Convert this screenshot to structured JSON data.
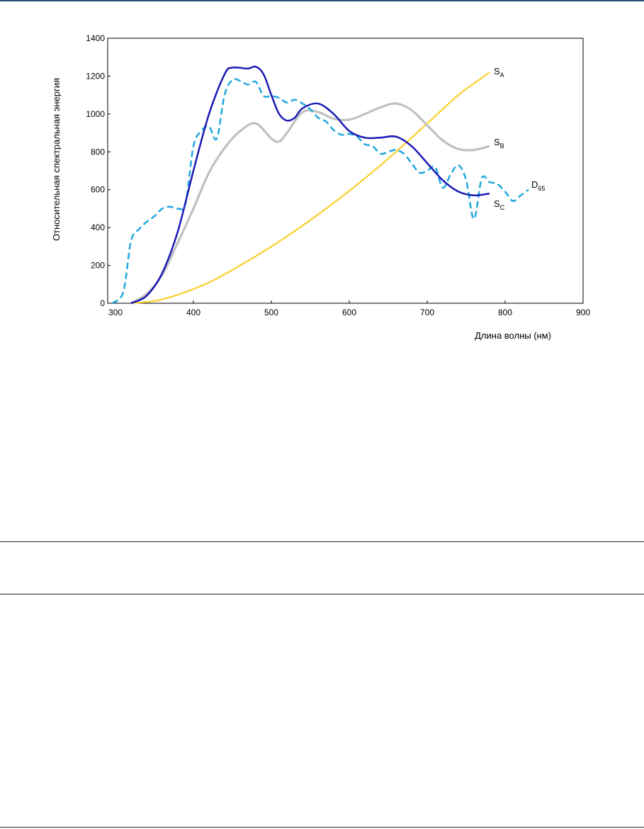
{
  "chart_data": {
    "type": "line",
    "xlabel": "Длина волны (нм)",
    "ylabel": "Относительная спектральная энергия",
    "xlim": [
      290,
      900
    ],
    "ylim": [
      0,
      1400
    ],
    "xticks": [
      300,
      400,
      500,
      600,
      700,
      800,
      900
    ],
    "yticks": [
      0,
      200,
      400,
      600,
      800,
      1000,
      1200,
      1400
    ],
    "grid": false,
    "legend": "inline labels",
    "series": [
      {
        "name": "A",
        "label_main": "S",
        "label_sub": "A",
        "color": "#f9d02b",
        "style": "solid",
        "x": [
          320,
          350,
          380,
          420,
          460,
          500,
          540,
          580,
          620,
          660,
          700,
          740,
          770,
          780
        ],
        "y": [
          0,
          12,
          45,
          110,
          200,
          300,
          410,
          530,
          660,
          800,
          950,
          1100,
          1190,
          1220
        ]
      },
      {
        "name": "B",
        "label_main": "S",
        "label_sub": "B",
        "color": "#c0c0c0",
        "style": "solid",
        "x": [
          320,
          340,
          360,
          380,
          400,
          420,
          440,
          460,
          480,
          500,
          510,
          520,
          540,
          560,
          580,
          600,
          620,
          640,
          660,
          680,
          700,
          720,
          740,
          760,
          780
        ],
        "y": [
          0,
          50,
          150,
          320,
          500,
          690,
          820,
          910,
          950,
          870,
          855,
          900,
          1010,
          1010,
          975,
          970,
          1000,
          1035,
          1055,
          1020,
          940,
          860,
          815,
          810,
          830
        ]
      },
      {
        "name": "C",
        "label_main": "S",
        "label_sub": "C",
        "color": "#1a1ab4",
        "style": "solid",
        "x": [
          320,
          340,
          360,
          380,
          400,
          420,
          440,
          450,
          470,
          480,
          490,
          500,
          510,
          520,
          530,
          540,
          560,
          580,
          600,
          620,
          640,
          660,
          680,
          700,
          720,
          740,
          760,
          780
        ],
        "y": [
          0,
          40,
          160,
          380,
          700,
          1000,
          1210,
          1245,
          1240,
          1250,
          1210,
          1100,
          1000,
          965,
          980,
          1030,
          1055,
          1000,
          910,
          875,
          875,
          880,
          830,
          740,
          650,
          590,
          570,
          580
        ]
      },
      {
        "name": "D65",
        "label_main": "D",
        "label_sub": "65",
        "color": "#1fa6e0",
        "style": "dashed",
        "x": [
          296,
          310,
          320,
          330,
          340,
          350,
          360,
          370,
          380,
          390,
          400,
          410,
          420,
          430,
          440,
          450,
          460,
          470,
          480,
          490,
          500,
          510,
          520,
          530,
          540,
          550,
          560,
          570,
          580,
          590,
          600,
          610,
          620,
          630,
          640,
          650,
          660,
          670,
          680,
          690,
          700,
          710,
          720,
          730,
          740,
          750,
          760,
          770,
          780,
          790,
          800,
          810,
          820,
          830
        ],
        "y": [
          0,
          60,
          330,
          390,
          430,
          460,
          500,
          510,
          500,
          530,
          830,
          910,
          935,
          870,
          1100,
          1180,
          1175,
          1155,
          1170,
          1095,
          1095,
          1085,
          1060,
          1075,
          1055,
          1025,
          980,
          960,
          915,
          890,
          895,
          880,
          840,
          830,
          790,
          800,
          810,
          790,
          740,
          690,
          700,
          720,
          610,
          680,
          730,
          650,
          445,
          660,
          640,
          630,
          590,
          540,
          570,
          600
        ]
      }
    ]
  }
}
